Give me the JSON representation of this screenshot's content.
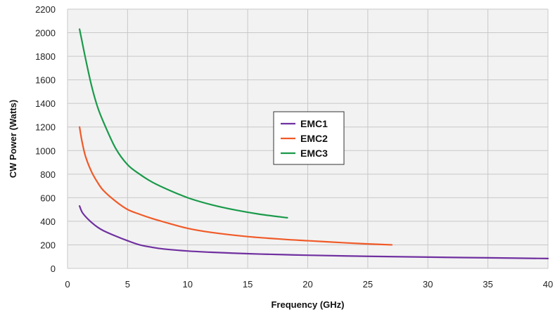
{
  "chart_data": {
    "type": "line",
    "xlabel": "Frequency (GHz)",
    "ylabel": "CW Power (Watts)",
    "xlim": [
      0,
      40
    ],
    "ylim": [
      0,
      2200
    ],
    "xticks": [
      0,
      5,
      10,
      15,
      20,
      25,
      30,
      35,
      40
    ],
    "yticks": [
      0,
      200,
      400,
      600,
      800,
      1000,
      1200,
      1400,
      1600,
      1800,
      2000,
      2200
    ],
    "grid": true,
    "legend": "center",
    "background": "#f2f2f2",
    "gridColor": "#c8c8c8",
    "series": [
      {
        "name": "EMC1",
        "color": "#7030a0",
        "x": [
          1,
          1.2,
          1.5,
          2,
          2.5,
          3,
          4,
          5,
          6,
          7,
          8,
          10,
          12,
          15,
          18,
          20,
          25,
          30,
          35,
          40
        ],
        "y": [
          530,
          480,
          440,
          390,
          350,
          320,
          275,
          235,
          200,
          180,
          165,
          148,
          137,
          125,
          117,
          112,
          103,
          96,
          90,
          84
        ]
      },
      {
        "name": "EMC2",
        "color": "#f05a28",
        "x": [
          1,
          1.2,
          1.5,
          2,
          2.5,
          3,
          4,
          5,
          6,
          7,
          8,
          10,
          12,
          15,
          18,
          20,
          23,
          25,
          27
        ],
        "y": [
          1200,
          1080,
          950,
          820,
          730,
          660,
          570,
          500,
          460,
          425,
          395,
          340,
          305,
          270,
          247,
          235,
          218,
          208,
          200
        ]
      },
      {
        "name": "EMC3",
        "color": "#1a9a4a",
        "x": [
          1,
          1.2,
          1.5,
          2,
          2.5,
          3,
          4,
          5,
          6,
          7,
          8,
          10,
          12,
          14,
          16,
          18.3
        ],
        "y": [
          2030,
          1930,
          1780,
          1550,
          1370,
          1240,
          1020,
          880,
          800,
          735,
          685,
          600,
          540,
          495,
          460,
          430
        ]
      }
    ]
  }
}
